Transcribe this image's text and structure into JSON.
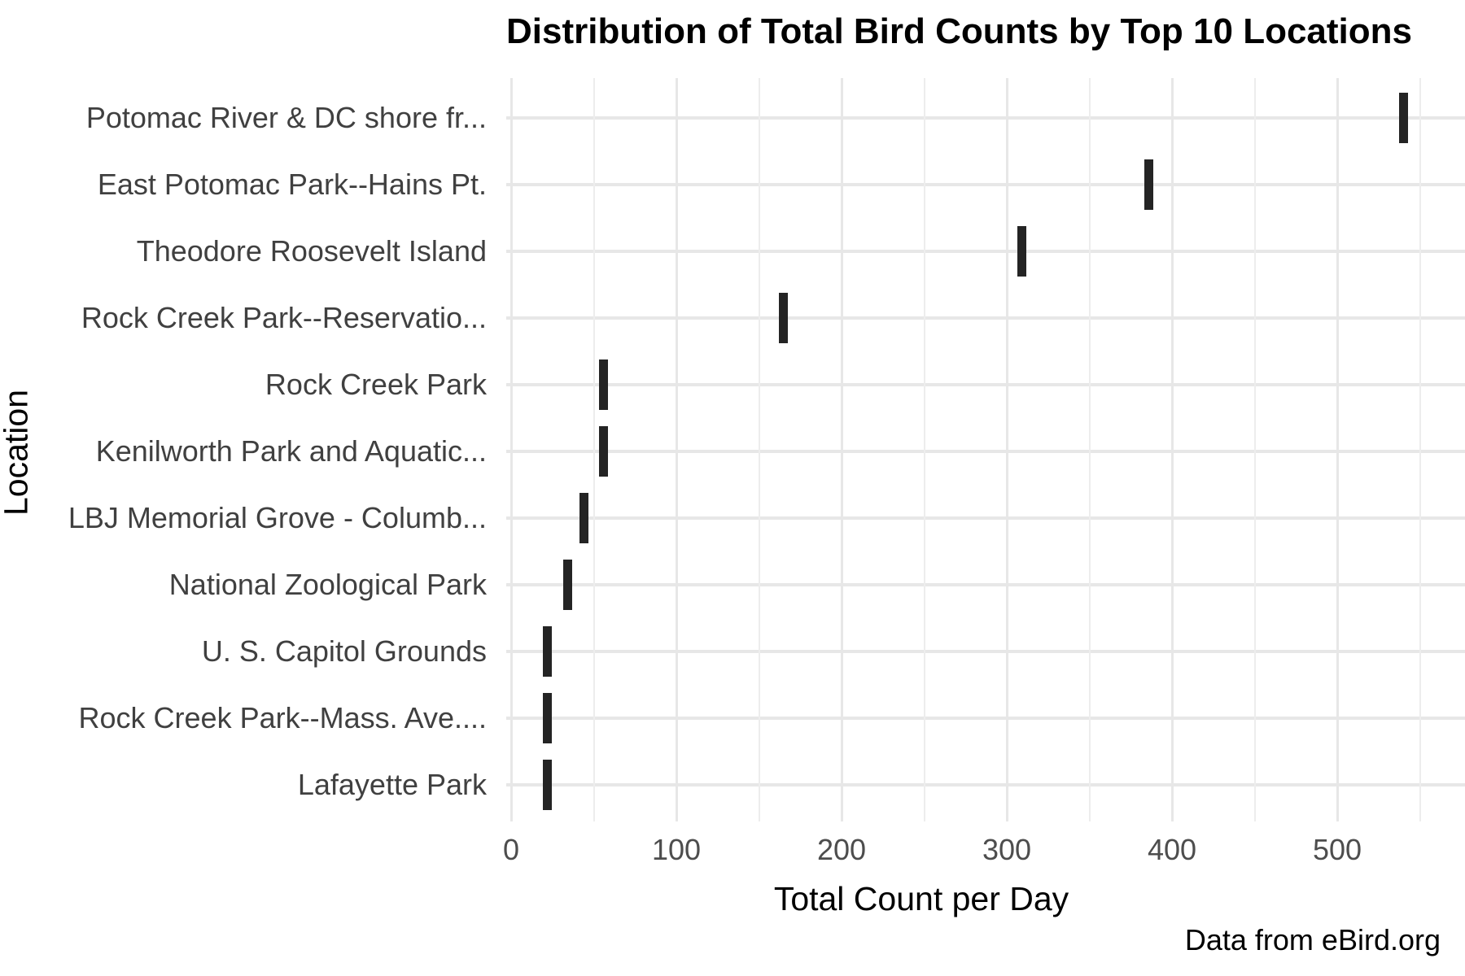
{
  "title": "Distribution of Total Bird Counts by Top 10 Locations",
  "caption": "Data from eBird.org",
  "colors": {
    "background": "#ffffff",
    "box_mark": "#242424",
    "grid_major": "#e7e7e7",
    "grid_minor": "#ededed",
    "tick_label": "#4d4d4d",
    "category_label": "#404040",
    "text": "#000000"
  },
  "chart_data": {
    "type": "boxplot",
    "orientation": "horizontal",
    "title": "Distribution of Total Bird Counts by Top 10 Locations",
    "xlabel": "Total Count per Day",
    "ylabel": "Location",
    "categories": [
      "Potomac River & DC shore fr...",
      "East Potomac Park--Hains Pt.",
      "Theodore Roosevelt Island",
      "Rock Creek Park--Reservatio...",
      "Rock Creek Park",
      "Kenilworth Park and Aquatic...",
      "LBJ Memorial Grove - Columb...",
      "National Zoological Park",
      "U. S. Capitol Grounds",
      "Rock Creek Park--Mass. Ave....",
      "Lafayette Park"
    ],
    "values": [
      540,
      386,
      309,
      165,
      56,
      56,
      44,
      34,
      22,
      22,
      22
    ],
    "note": "Each distribution collapses to a single vertical tick (median line) per location",
    "xticks": [
      0,
      100,
      200,
      300,
      400,
      500
    ],
    "minor_xticks": [
      50,
      150,
      250,
      350,
      450,
      550
    ],
    "xlim": [
      -3,
      577
    ],
    "grid": "major-and-minor-x, major-y",
    "legend": false
  }
}
